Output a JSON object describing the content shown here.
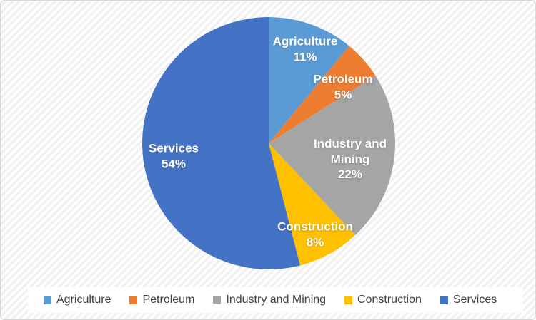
{
  "chart_data": {
    "type": "pie",
    "title": "",
    "categories": [
      "Agriculture",
      "Petroleum",
      "Industry and Mining",
      "Construction",
      "Services"
    ],
    "values": [
      11,
      5,
      22,
      8,
      54
    ],
    "unit": "%",
    "colors": [
      "#5B9BD5",
      "#ED7D31",
      "#A5A5A5",
      "#FFC000",
      "#4472C4"
    ],
    "start_angle_deg": 0,
    "direction": "clockwise",
    "legend_position": "bottom",
    "data_label_color": "#FFFFFF"
  },
  "slice_labels": [
    {
      "lines": [
        "Agriculture",
        "11%"
      ]
    },
    {
      "lines": [
        "Petroleum",
        "5%"
      ]
    },
    {
      "lines": [
        "Industry and",
        "Mining",
        "22%"
      ]
    },
    {
      "lines": [
        "Construction",
        "8%"
      ]
    },
    {
      "lines": [
        "Services",
        "54%"
      ]
    }
  ],
  "legend": {
    "text_color": "#404040",
    "items": [
      {
        "label": "Agriculture",
        "color": "#5B9BD5"
      },
      {
        "label": "Petroleum",
        "color": "#ED7D31"
      },
      {
        "label": "Industry and Mining",
        "color": "#A5A5A5"
      },
      {
        "label": "Construction",
        "color": "#FFC000"
      },
      {
        "label": "Services",
        "color": "#4472C4"
      }
    ]
  }
}
